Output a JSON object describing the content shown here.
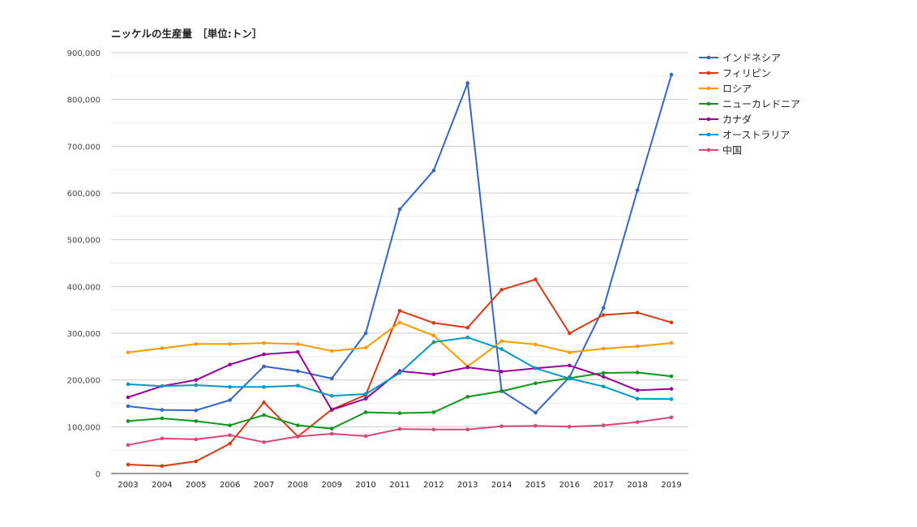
{
  "chart_data": {
    "type": "line",
    "title": "ニッケルの生産量　［単位:トン］",
    "xlabel": "",
    "ylabel": "",
    "ylim": [
      0,
      900000
    ],
    "yticks": [
      0,
      100000,
      200000,
      300000,
      400000,
      500000,
      600000,
      700000,
      800000,
      900000
    ],
    "ytick_labels": [
      "0",
      "100,000",
      "200,000",
      "300,000",
      "400,000",
      "500,000",
      "600,000",
      "700,000",
      "800,000",
      "900,000"
    ],
    "categories": [
      "2003",
      "2004",
      "2005",
      "2006",
      "2007",
      "2008",
      "2009",
      "2010",
      "2011",
      "2012",
      "2013",
      "2014",
      "2015",
      "2016",
      "2017",
      "2018",
      "2019"
    ],
    "grid": true,
    "legend_position": "right",
    "series": [
      {
        "name": "インドネシア",
        "color": "#3366cc",
        "values": [
          144000,
          136000,
          135000,
          157000,
          229000,
          219000,
          203000,
          300000,
          565000,
          648000,
          835000,
          177000,
          130000,
          206000,
          354000,
          606000,
          853000
        ]
      },
      {
        "name": "フィリピン",
        "color": "#dc3912",
        "values": [
          19000,
          16000,
          26000,
          64000,
          152000,
          79000,
          137000,
          168000,
          348000,
          322000,
          312000,
          393000,
          415000,
          300000,
          339000,
          344000,
          323000
        ]
      },
      {
        "name": "ロシア",
        "color": "#ff9900",
        "values": [
          259000,
          268000,
          277000,
          277000,
          279000,
          277000,
          262000,
          269000,
          323000,
          295000,
          229000,
          283000,
          276000,
          259000,
          267000,
          272000,
          279000
        ]
      },
      {
        "name": "ニューカレドニア",
        "color": "#109618",
        "values": [
          112000,
          118000,
          112000,
          103000,
          125000,
          103000,
          96000,
          131000,
          129000,
          131000,
          164000,
          176000,
          193000,
          204000,
          215000,
          216000,
          208000
        ]
      },
      {
        "name": "カナダ",
        "color": "#990099",
        "values": [
          163000,
          187000,
          200000,
          233000,
          255000,
          260000,
          136000,
          160000,
          219000,
          212000,
          227000,
          218000,
          225000,
          231000,
          207000,
          178000,
          181000
        ]
      },
      {
        "name": "オーストラリア",
        "color": "#0099c6",
        "values": [
          191000,
          187000,
          189000,
          185000,
          185000,
          188000,
          166000,
          170000,
          215000,
          281000,
          291000,
          266000,
          225000,
          203000,
          186000,
          160000,
          159000
        ]
      },
      {
        "name": "中国",
        "color": "#dd4477",
        "values": [
          61000,
          75000,
          73000,
          82000,
          67000,
          79000,
          85000,
          80000,
          95000,
          94000,
          94000,
          101000,
          102000,
          100000,
          103000,
          110000,
          120000
        ]
      }
    ]
  }
}
